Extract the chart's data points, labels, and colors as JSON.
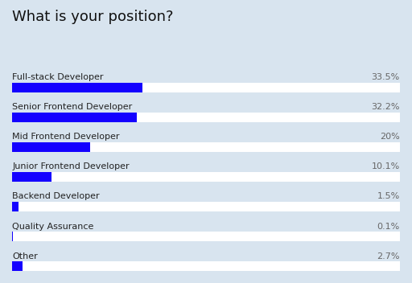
{
  "title": "What is your position?",
  "categories": [
    "Full-stack Developer",
    "Senior Frontend Developer",
    "Mid Frontend Developer",
    "Junior Frontend Developer",
    "Backend Developer",
    "Quality Assurance",
    "Other"
  ],
  "values": [
    33.5,
    32.2,
    20.0,
    10.1,
    1.5,
    0.1,
    2.7
  ],
  "labels": [
    "33.5%",
    "32.2%",
    "20%",
    "10.1%",
    "1.5%",
    "0.1%",
    "2.7%"
  ],
  "bar_color": "#1400ff",
  "bg_color": "#d8e4ef",
  "bar_bg_color": "#ffffff",
  "title_fontsize": 13,
  "label_fontsize": 8,
  "value_fontsize": 8,
  "max_value": 100
}
